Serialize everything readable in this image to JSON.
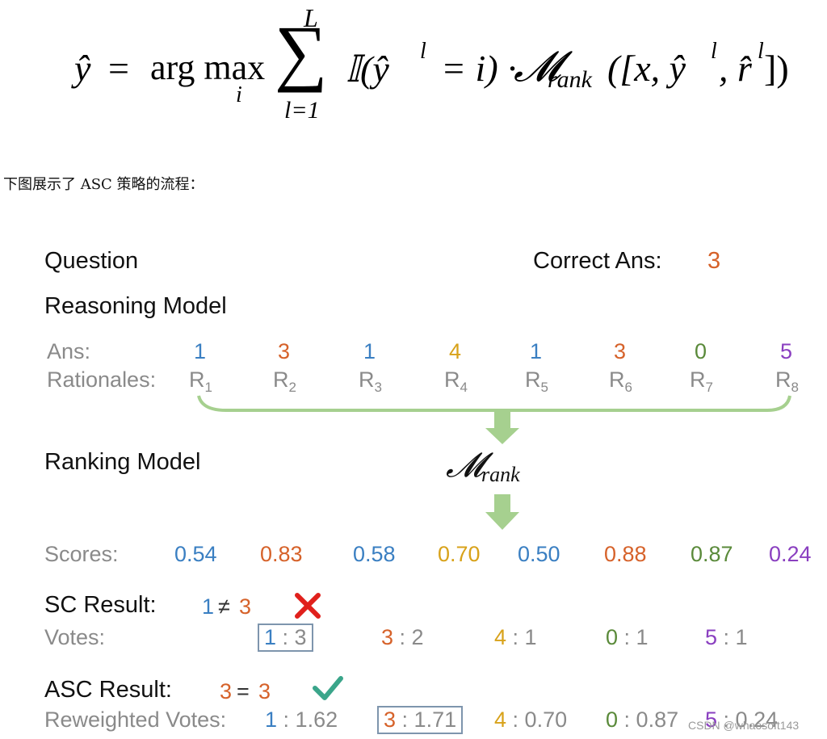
{
  "formula": {
    "lhs": "ŷ",
    "equals": "=",
    "argmax": "arg max",
    "argmax_sub": "i",
    "sum_top": "L",
    "sum_bottom": "l=1",
    "indicator": "𝕀(ŷ",
    "indicator_sup": "l",
    "indicator_rest": "= i) ·",
    "model": "𝓜",
    "model_sub": "rank",
    "args": "([x, ŷ",
    "args_sup1": "l",
    "args_mid": ", r̂",
    "args_sup2": "l",
    "args_end": "])"
  },
  "intro": "下图展示了 ASC 策略的流程：",
  "diagram": {
    "question_label": "Question",
    "correct_label": "Correct Ans:",
    "correct_value": "3",
    "reasoning_label": "Reasoning Model",
    "ans_label": "Ans:",
    "rationales_label": "Rationales:",
    "answers": [
      {
        "value": "1",
        "color": "#3a7fc2"
      },
      {
        "value": "3",
        "color": "#d6622a"
      },
      {
        "value": "1",
        "color": "#3a7fc2"
      },
      {
        "value": "4",
        "color": "#d8a21a"
      },
      {
        "value": "1",
        "color": "#3a7fc2"
      },
      {
        "value": "3",
        "color": "#d6622a"
      },
      {
        "value": "0",
        "color": "#5a8a3a"
      },
      {
        "value": "5",
        "color": "#8a3fc0"
      }
    ],
    "rationales": [
      {
        "r": "R",
        "sub": "1"
      },
      {
        "r": "R",
        "sub": "2"
      },
      {
        "r": "R",
        "sub": "3"
      },
      {
        "r": "R",
        "sub": "4"
      },
      {
        "r": "R",
        "sub": "5"
      },
      {
        "r": "R",
        "sub": "6"
      },
      {
        "r": "R",
        "sub": "7"
      },
      {
        "r": "R",
        "sub": "8"
      }
    ],
    "ranking_label": "Ranking Model",
    "model_symbol": "𝓜",
    "model_sub": "rank",
    "scores_label": "Scores:",
    "scores": [
      {
        "value": "0.54",
        "color": "#3a7fc2"
      },
      {
        "value": "0.83",
        "color": "#d6622a"
      },
      {
        "value": "0.58",
        "color": "#3a7fc2"
      },
      {
        "value": "0.70",
        "color": "#d8a21a"
      },
      {
        "value": "0.50",
        "color": "#3a7fc2"
      },
      {
        "value": "0.88",
        "color": "#d6622a"
      },
      {
        "value": "0.87",
        "color": "#5a8a3a"
      },
      {
        "value": "0.24",
        "color": "#8a3fc0"
      }
    ],
    "sc_result_label": "SC Result:",
    "sc_result_left": "1",
    "sc_result_op": "≠",
    "sc_result_right": "3",
    "votes_label": "Votes:",
    "votes": [
      {
        "key": "1",
        "sep": " : ",
        "count": "3",
        "color": "#3a7fc2",
        "boxed": true
      },
      {
        "key": "3",
        "sep": " : ",
        "count": "2",
        "color": "#d6622a",
        "boxed": false
      },
      {
        "key": "4",
        "sep": " : ",
        "count": "1",
        "color": "#d8a21a",
        "boxed": false
      },
      {
        "key": "0",
        "sep": " : ",
        "count": "1",
        "color": "#5a8a3a",
        "boxed": false
      },
      {
        "key": "5",
        "sep": " : ",
        "count": "1",
        "color": "#8a3fc0",
        "boxed": false
      }
    ],
    "asc_result_label": "ASC Result:",
    "asc_result_left": "3",
    "asc_result_op": "=",
    "asc_result_right": "3",
    "reweighted_label": "Reweighted Votes:",
    "reweighted": [
      {
        "key": "1",
        "sep": " : ",
        "count": "1.62",
        "color": "#3a7fc2",
        "boxed": false
      },
      {
        "key": "3",
        "sep": " : ",
        "count": "1.71",
        "color": "#d6622a",
        "boxed": true
      },
      {
        "key": "4",
        "sep": " : ",
        "count": "0.70",
        "color": "#d8a21a",
        "boxed": false
      },
      {
        "key": "0",
        "sep": " : ",
        "count": "0.87",
        "color": "#5a8a3a",
        "boxed": false
      },
      {
        "key": "5",
        "sep": " : ",
        "count": "0.24",
        "color": "#8a3fc0",
        "boxed": false
      }
    ],
    "cross_color": "#e0201c",
    "check_color": "#3aa58a",
    "arrow_color": "#a6d08f"
  },
  "watermark": "CSDN @whaosoft143"
}
